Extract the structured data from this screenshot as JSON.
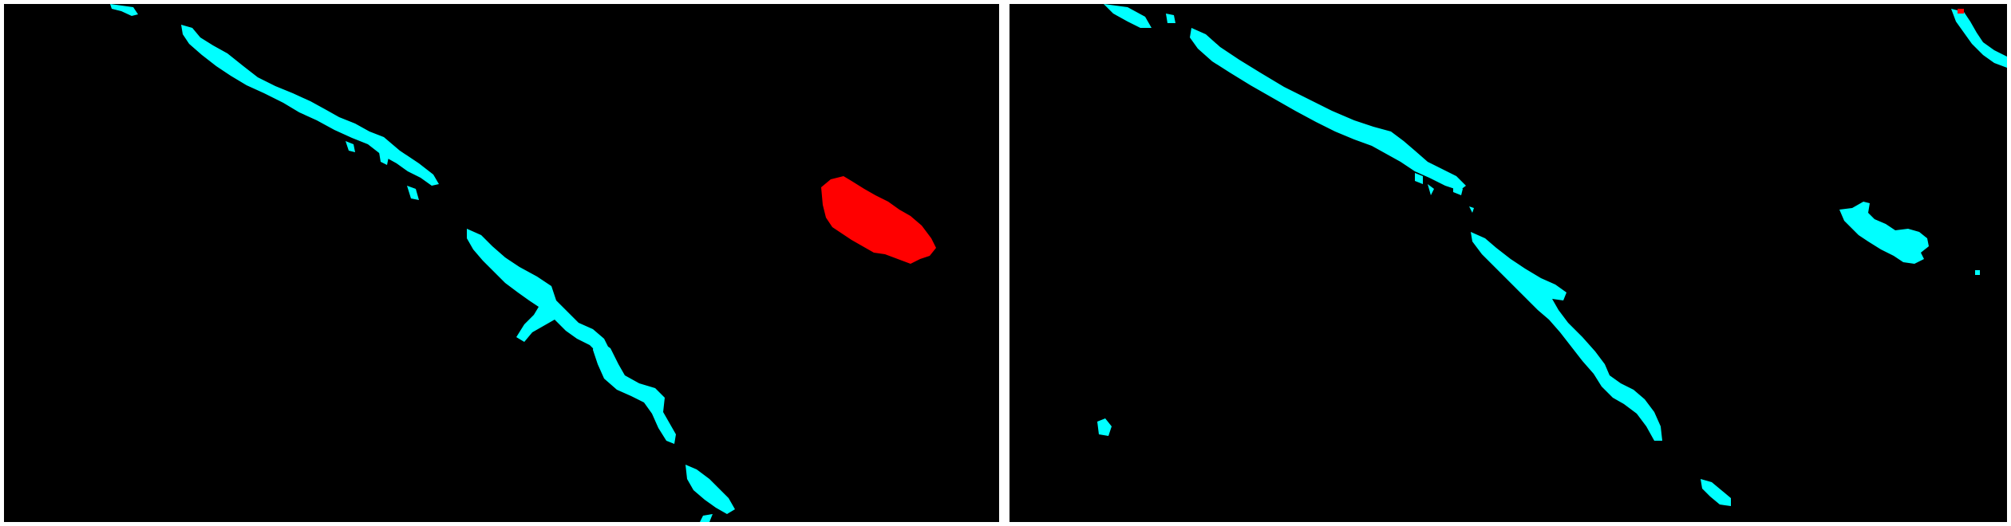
{
  "figure": {
    "background_color": "#000000",
    "divider_color": "#ffffff"
  },
  "legend": {
    "colors": {
      "class_a": "#00ffff",
      "class_b": "#ff0000"
    }
  },
  "panels": [
    {
      "name": "ground-truth-mask",
      "regions": [
        "cyan-crack-segments",
        "red-blob"
      ]
    },
    {
      "name": "prediction-mask",
      "regions": [
        "cyan-crack-segments",
        "cyan-blob",
        "red-dot"
      ]
    }
  ]
}
